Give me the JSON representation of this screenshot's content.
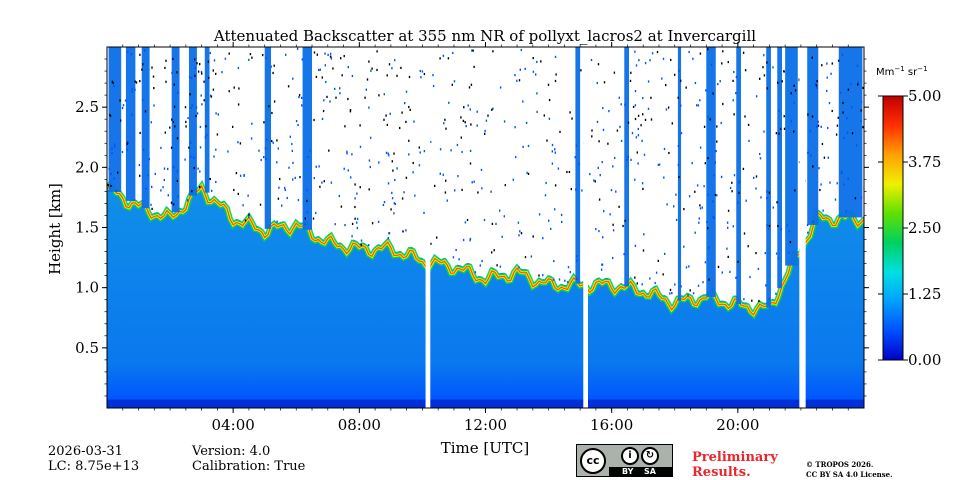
{
  "chart_data": {
    "type": "heatmap",
    "title": "Attenuated Backscatter at 355 nm NR of pollyxt_lacros2 at Invercargill",
    "xlabel": "Time [UTC]",
    "ylabel": "Height [km]",
    "xlim_hours": [
      0,
      24
    ],
    "ylim_km": [
      0,
      3.0
    ],
    "x_ticks": [
      {
        "value": 4,
        "label": "04:00"
      },
      {
        "value": 8,
        "label": "08:00"
      },
      {
        "value": 12,
        "label": "12:00"
      },
      {
        "value": 16,
        "label": "16:00"
      },
      {
        "value": 20,
        "label": "20:00"
      }
    ],
    "y_ticks": [
      {
        "value": 0.5,
        "label": "0.5"
      },
      {
        "value": 1.0,
        "label": "1.0"
      },
      {
        "value": 1.5,
        "label": "1.5"
      },
      {
        "value": 2.0,
        "label": "2.0"
      },
      {
        "value": 2.5,
        "label": "2.5"
      }
    ],
    "colorbar": {
      "unit_main": "Mm",
      "unit_exp1": "−1",
      "unit_mid": " sr",
      "unit_exp2": "−1",
      "range": [
        0.0,
        5.0
      ],
      "ticks": [
        {
          "value": 0.0,
          "label": "0.00"
        },
        {
          "value": 1.25,
          "label": "1.25"
        },
        {
          "value": 2.5,
          "label": "2.50"
        },
        {
          "value": 3.75,
          "label": "3.75"
        },
        {
          "value": 5.0,
          "label": "5.00"
        }
      ],
      "colormap": [
        "#0000c8",
        "#0050ff",
        "#00a0ff",
        "#00e0e0",
        "#00d060",
        "#60e000",
        "#f0f000",
        "#ffa000",
        "#ff3000",
        "#c00000"
      ]
    },
    "data_gaps_hours": [
      [
        10.1,
        10.25
      ],
      [
        15.1,
        15.25
      ],
      [
        21.95,
        22.15
      ]
    ],
    "layer_top_km": [
      {
        "t": 0.0,
        "h": 1.85
      },
      {
        "t": 1.0,
        "h": 1.7
      },
      {
        "t": 2.0,
        "h": 1.6
      },
      {
        "t": 3.0,
        "h": 1.85
      },
      {
        "t": 4.0,
        "h": 1.6
      },
      {
        "t": 5.0,
        "h": 1.5
      },
      {
        "t": 6.0,
        "h": 1.55
      },
      {
        "t": 7.0,
        "h": 1.4
      },
      {
        "t": 8.0,
        "h": 1.35
      },
      {
        "t": 9.0,
        "h": 1.35
      },
      {
        "t": 10.0,
        "h": 1.25
      },
      {
        "t": 11.0,
        "h": 1.2
      },
      {
        "t": 12.0,
        "h": 1.1
      },
      {
        "t": 13.0,
        "h": 1.15
      },
      {
        "t": 14.0,
        "h": 1.05
      },
      {
        "t": 15.0,
        "h": 1.05
      },
      {
        "t": 16.0,
        "h": 1.05
      },
      {
        "t": 17.0,
        "h": 1.0
      },
      {
        "t": 18.0,
        "h": 0.9
      },
      {
        "t": 19.0,
        "h": 0.95
      },
      {
        "t": 20.0,
        "h": 0.88
      },
      {
        "t": 21.0,
        "h": 0.85
      },
      {
        "t": 22.5,
        "h": 1.6
      },
      {
        "t": 24.0,
        "h": 1.6
      }
    ]
  },
  "footer": {
    "date": "2026-03-31",
    "lc": "LC: 8.75e+13",
    "version": "Version: 4.0",
    "calibration": "Calibration: True",
    "cc_by": "BY",
    "cc_sa": "SA",
    "preliminary_1": "Preliminary",
    "preliminary_2": "Results.",
    "copyright_1": "© TROPOS 2026.",
    "copyright_2": "CC BY SA 4.0 License."
  }
}
